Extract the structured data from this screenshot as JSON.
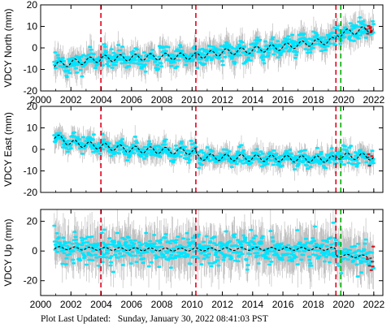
{
  "footer": {
    "label": "Plot Last Updated:",
    "date": "Sunday, January 30, 2022 08:41:03 PST"
  },
  "colors": {
    "errorbar": "#c0c0c0",
    "points": "#00e5ff",
    "outlier_points": "#ff0000",
    "model": "#000000",
    "event_line_red": "#e8001c",
    "event_line_green": "#00b000"
  },
  "chart_data": [
    {
      "type": "scatter",
      "ylabel": "VDCY North (mm)",
      "xlim": [
        2000,
        2022.6
      ],
      "ylim": [
        -20,
        20
      ],
      "x_ticks": [
        2000,
        2002,
        2004,
        2006,
        2008,
        2010,
        2012,
        2014,
        2016,
        2018,
        2020,
        2022
      ],
      "y_ticks": [
        -20,
        -10,
        0,
        10,
        20
      ],
      "show_x_tick_labels": true,
      "grid": false,
      "event_lines": [
        {
          "x": 2003.98,
          "color": "red"
        },
        {
          "x": 2010.25,
          "color": "red"
        },
        {
          "x": 2019.5,
          "color": "red"
        },
        {
          "x": 2019.82,
          "color": "green"
        }
      ],
      "model_trend": [
        [
          2000.9,
          -8
        ],
        [
          2004.0,
          -5
        ],
        [
          2006.0,
          -4.5
        ],
        [
          2008.0,
          -4
        ],
        [
          2010.25,
          -3.8
        ],
        [
          2012.0,
          -2
        ],
        [
          2014.0,
          -1
        ],
        [
          2016.0,
          0.5
        ],
        [
          2018.0,
          2.5
        ],
        [
          2019.45,
          3.5
        ],
        [
          2019.55,
          6.5
        ],
        [
          2020.5,
          7.5
        ],
        [
          2022.0,
          9
        ]
      ],
      "seasonal_amplitude": 1.5,
      "point_scatter": 2.2,
      "error_bar_halfwidth": 5
    },
    {
      "type": "scatter",
      "ylabel": "VDCY East (mm)",
      "xlim": [
        2000,
        2022.6
      ],
      "ylim": [
        -20,
        20
      ],
      "x_ticks": [
        2000,
        2002,
        2004,
        2006,
        2008,
        2010,
        2012,
        2014,
        2016,
        2018,
        2020,
        2022
      ],
      "y_ticks": [
        -20,
        -10,
        0,
        10,
        20
      ],
      "show_x_tick_labels": false,
      "grid": false,
      "event_lines": [
        {
          "x": 2003.98,
          "color": "red"
        },
        {
          "x": 2010.25,
          "color": "red"
        },
        {
          "x": 2019.5,
          "color": "red"
        },
        {
          "x": 2019.82,
          "color": "green"
        }
      ],
      "model_trend": [
        [
          2000.9,
          6
        ],
        [
          2002.0,
          3
        ],
        [
          2004.0,
          1.5
        ],
        [
          2006.0,
          0
        ],
        [
          2008.0,
          -0.5
        ],
        [
          2010.25,
          -1
        ],
        [
          2010.3,
          -3.5
        ],
        [
          2014.0,
          -4
        ],
        [
          2018.0,
          -4.5
        ],
        [
          2019.45,
          -4.5
        ],
        [
          2019.55,
          -3
        ],
        [
          2022.0,
          -3.5
        ]
      ],
      "seasonal_amplitude": 1.5,
      "point_scatter": 1.8,
      "error_bar_halfwidth": 4
    },
    {
      "type": "scatter",
      "ylabel": "VDCY Up (mm)",
      "xlim": [
        2000,
        2022.6
      ],
      "ylim": [
        -30,
        28
      ],
      "x_ticks": [
        2000,
        2002,
        2004,
        2006,
        2008,
        2010,
        2012,
        2014,
        2016,
        2018,
        2020,
        2022
      ],
      "y_ticks": [
        -20,
        0,
        20
      ],
      "show_x_tick_labels": true,
      "grid": false,
      "event_lines": [
        {
          "x": 2003.98,
          "color": "red"
        },
        {
          "x": 2010.25,
          "color": "red"
        },
        {
          "x": 2019.5,
          "color": "red"
        },
        {
          "x": 2019.82,
          "color": "green"
        }
      ],
      "model_trend": [
        [
          2000.9,
          2
        ],
        [
          2004.0,
          1.5
        ],
        [
          2008.0,
          1
        ],
        [
          2010.25,
          1
        ],
        [
          2014.0,
          1.5
        ],
        [
          2018.0,
          1.5
        ],
        [
          2019.45,
          1.5
        ],
        [
          2019.55,
          -3
        ],
        [
          2022.0,
          -4
        ]
      ],
      "seasonal_amplitude": 1.0,
      "point_scatter": 5,
      "error_bar_halfwidth": 12
    }
  ]
}
